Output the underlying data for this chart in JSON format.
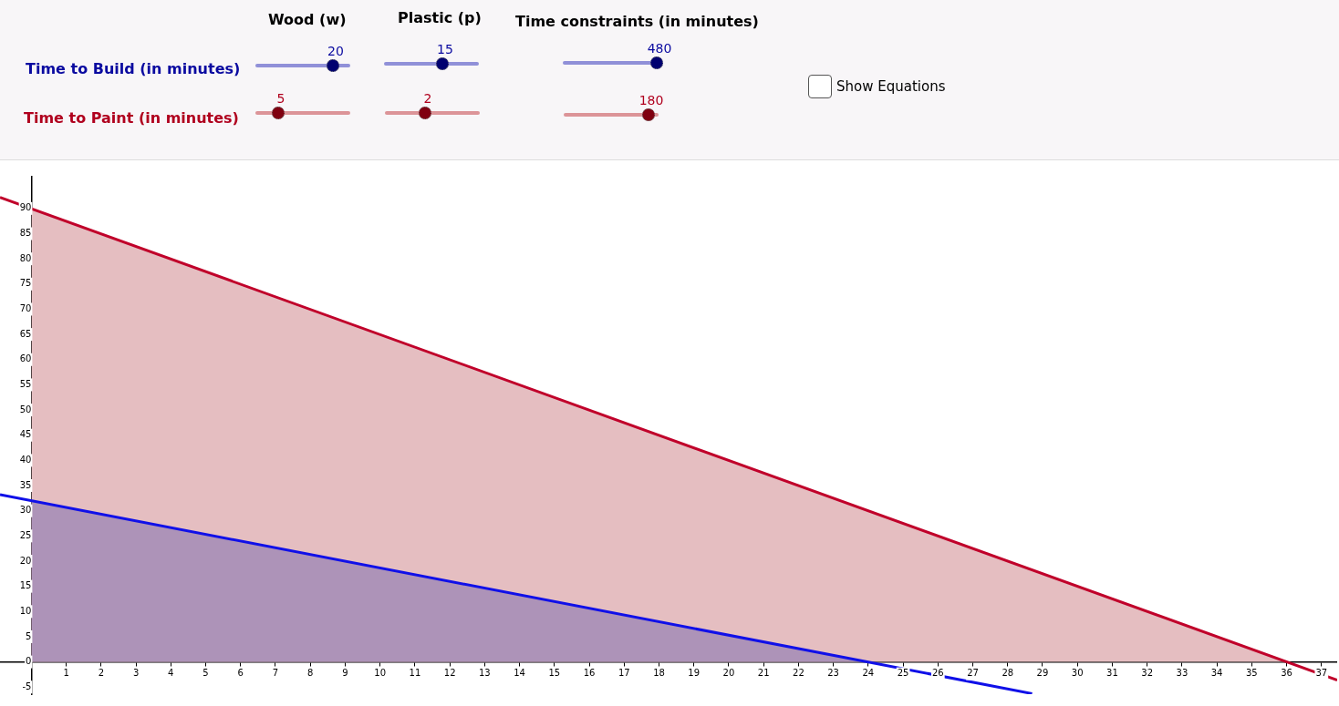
{
  "chart_data": {
    "type": "line",
    "annotations": [
      "Wood (w)",
      "Plastic (p)",
      "Time constraints (in minutes)",
      "Time to Build (in minutes)",
      "Time to Paint (in minutes)",
      "20",
      "15",
      "480",
      "5",
      "2",
      "180",
      "Show Equations"
    ],
    "series": [
      {
        "type": "area",
        "color": "#e5bec1",
        "x": [
          0,
          36
        ],
        "values": [
          90,
          0
        ]
      },
      {
        "type": "area",
        "color": "#ad93b8",
        "x": [
          0,
          24
        ],
        "values": [
          32,
          0
        ]
      },
      {
        "color": "#c0002a",
        "x": [
          -0.9,
          37.45
        ],
        "values": [
          92.2,
          -3.6
        ]
      },
      {
        "color": "#1010e8",
        "x": [
          -0.9,
          28.7
        ],
        "values": [
          33.2,
          -6.3
        ]
      }
    ],
    "xlim": [
      -0.9,
      37.45
    ],
    "ylim": [
      -6.4,
      96.3
    ],
    "xticks": [
      1,
      2,
      3,
      4,
      5,
      6,
      7,
      8,
      9,
      10,
      11,
      12,
      13,
      14,
      15,
      16,
      17,
      18,
      19,
      20,
      21,
      22,
      23,
      24,
      25,
      26,
      27,
      28,
      29,
      30,
      31,
      32,
      33,
      34,
      35,
      36,
      37
    ],
    "yticks": [
      -5,
      0,
      5,
      10,
      15,
      20,
      25,
      30,
      35,
      40,
      45,
      50,
      55,
      60,
      65,
      70,
      75,
      80,
      85,
      90
    ],
    "grid": false,
    "legend": false,
    "marker": "none",
    "line_style": "solid"
  }
}
